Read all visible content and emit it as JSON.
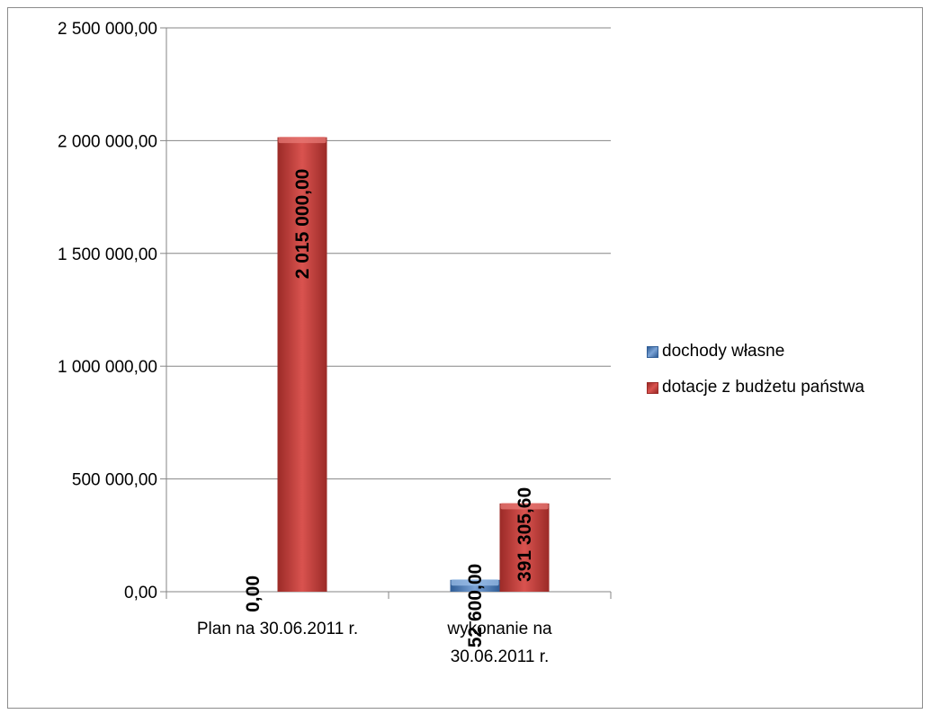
{
  "chart_data": {
    "type": "bar",
    "title": "",
    "xlabel": "",
    "ylabel": "",
    "categories": [
      "Plan na 30.06.2011 r.",
      "wykonanie na 30.06.2011 r."
    ],
    "category_lines": [
      [
        "Plan na 30.06.2011 r."
      ],
      [
        "wykonanie na",
        "30.06.2011 r."
      ]
    ],
    "series": [
      {
        "name": "dochody własne",
        "values": [
          0,
          52600
        ],
        "labels": [
          "0,00",
          "52 600,00"
        ],
        "color": "#4f81bd"
      },
      {
        "name": "dotacje z budżetu państwa",
        "values": [
          2015000,
          391305.6
        ],
        "labels": [
          "2 015 000,00",
          "391 305,60"
        ],
        "color": "#c0504d"
      }
    ],
    "ylim": [
      0,
      2500000
    ],
    "yticks": [
      0,
      500000,
      1000000,
      1500000,
      2000000,
      2500000
    ],
    "ytick_labels": [
      "0,00",
      "500 000,00",
      "1 000 000,00",
      "1 500 000,00",
      "2 000 000,00",
      "2 500 000,00"
    ],
    "grid": true,
    "legend_position": "right"
  }
}
